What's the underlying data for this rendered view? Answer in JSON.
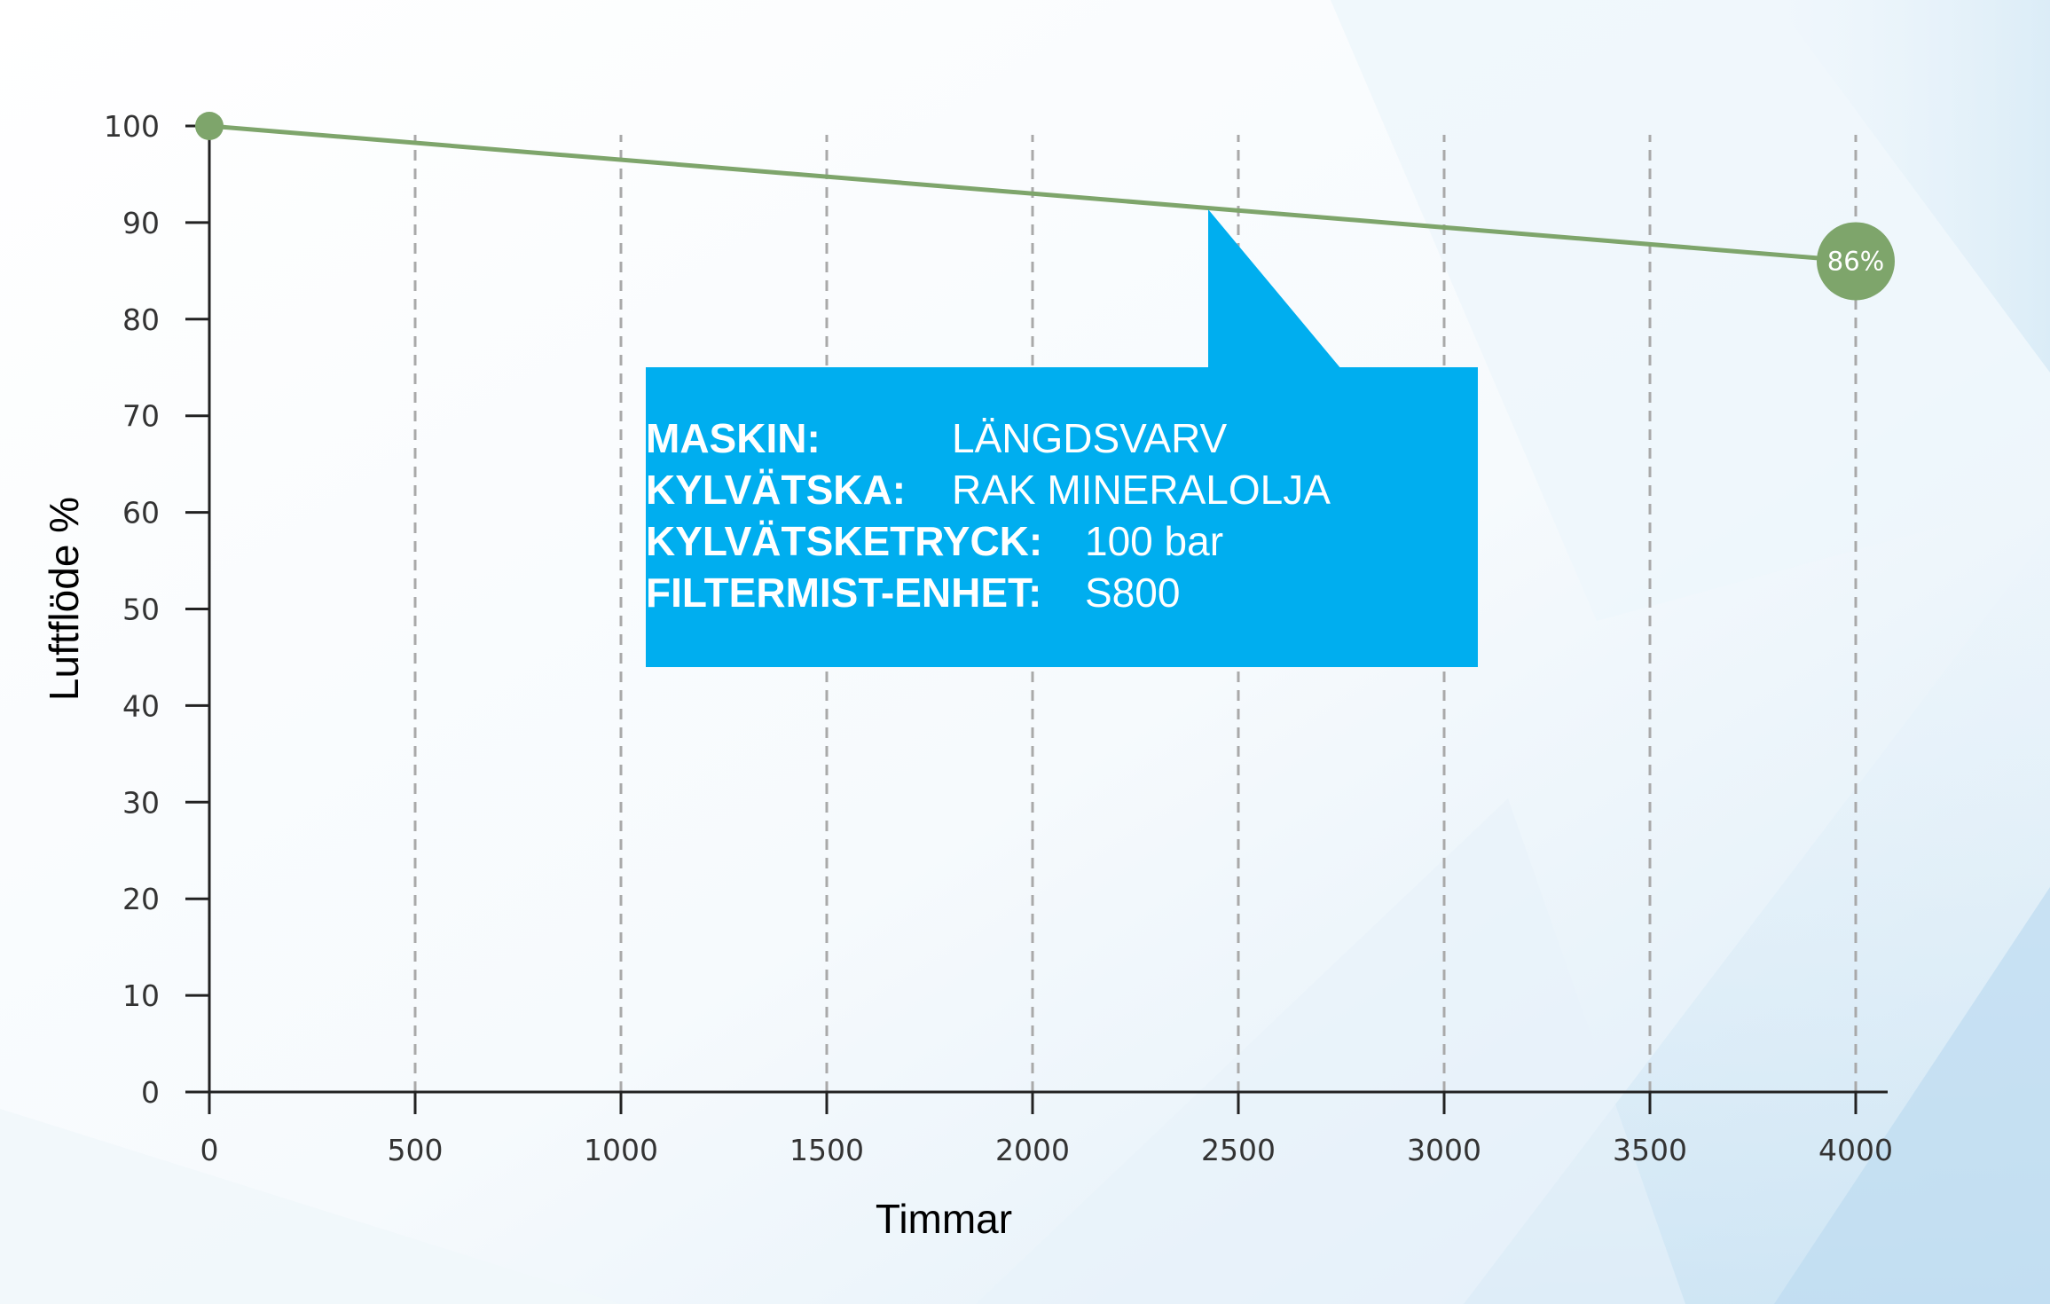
{
  "chart_data": {
    "type": "line",
    "xlabel": "Timmar",
    "ylabel": "Luftflöde %",
    "xlim": [
      0,
      4000
    ],
    "ylim": [
      0,
      100
    ],
    "x_ticks": [
      "0",
      "500",
      "1000",
      "1500",
      "2000",
      "2500",
      "3000",
      "3500",
      "4000"
    ],
    "y_ticks": [
      "0",
      "10",
      "20",
      "30",
      "40",
      "50",
      "60",
      "70",
      "80",
      "90",
      "100"
    ],
    "grid": "vertical dashed",
    "series": [
      {
        "x": [
          0,
          4000
        ],
        "y": [
          100,
          86
        ],
        "color": "#7ea56b"
      }
    ],
    "end_point_label": "86%",
    "callout": {
      "color": "#00aeef",
      "rows": [
        {
          "key": "MASKIN:",
          "value": "LÄNGDSVARV"
        },
        {
          "key": "KYLVÄTSKA:",
          "value": "RAK MINERALOLJA"
        },
        {
          "key": "KYLVÄTSKETRYCK:",
          "value": "100 bar"
        },
        {
          "key": "FILTERMIST-ENHET:",
          "value": "S800"
        }
      ]
    }
  }
}
